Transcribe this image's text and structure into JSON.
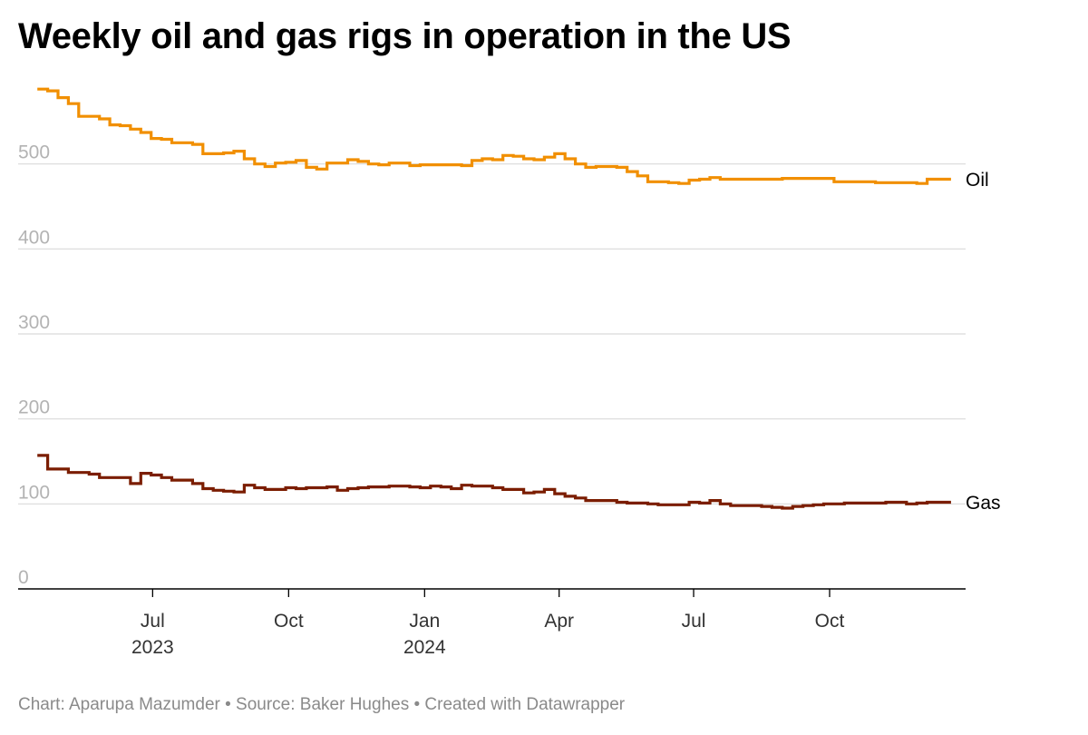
{
  "title": "Weekly oil and gas rigs in operation in the US",
  "footer": "Chart: Aparupa Mazumder • Source: Baker Hughes • Created with Datawrapper",
  "colors": {
    "oil": "#f18f00",
    "gas": "#7b1d00",
    "grid": "#d9d9d9",
    "axis": "#000000",
    "y_tick_text": "#b3b3b3",
    "x_tick_text": "#333333",
    "footer_text": "#8a8a8a"
  },
  "chart_data": {
    "type": "line",
    "title": "Weekly oil and gas rigs in operation in the US",
    "xlabel": "",
    "ylabel": "",
    "ylim": [
      0,
      600
    ],
    "xlim": [
      "2023-04-01",
      "2025-01-01"
    ],
    "grid": true,
    "line_style": "step",
    "y_ticks": [
      0,
      100,
      200,
      300,
      400,
      500
    ],
    "x_ticks": [
      {
        "date": "2023-07-01",
        "label": "Jul",
        "year": "2023"
      },
      {
        "date": "2023-10-01",
        "label": "Oct",
        "year": ""
      },
      {
        "date": "2024-01-01",
        "label": "Jan",
        "year": "2024"
      },
      {
        "date": "2024-04-01",
        "label": "Apr",
        "year": ""
      },
      {
        "date": "2024-07-01",
        "label": "Jul",
        "year": ""
      },
      {
        "date": "2024-10-01",
        "label": "Oct",
        "year": ""
      }
    ],
    "x": [
      "2023-04-14",
      "2023-04-21",
      "2023-04-28",
      "2023-05-05",
      "2023-05-12",
      "2023-05-19",
      "2023-05-26",
      "2023-06-02",
      "2023-06-09",
      "2023-06-16",
      "2023-06-23",
      "2023-06-30",
      "2023-07-07",
      "2023-07-14",
      "2023-07-21",
      "2023-07-28",
      "2023-08-04",
      "2023-08-11",
      "2023-08-18",
      "2023-08-25",
      "2023-09-01",
      "2023-09-08",
      "2023-09-15",
      "2023-09-22",
      "2023-09-29",
      "2023-10-06",
      "2023-10-13",
      "2023-10-20",
      "2023-10-27",
      "2023-11-03",
      "2023-11-10",
      "2023-11-17",
      "2023-11-24",
      "2023-12-01",
      "2023-12-08",
      "2023-12-15",
      "2023-12-22",
      "2023-12-29",
      "2024-01-05",
      "2024-01-12",
      "2024-01-19",
      "2024-01-26",
      "2024-02-02",
      "2024-02-09",
      "2024-02-16",
      "2024-02-23",
      "2024-03-01",
      "2024-03-08",
      "2024-03-15",
      "2024-03-22",
      "2024-03-29",
      "2024-04-05",
      "2024-04-12",
      "2024-04-19",
      "2024-04-26",
      "2024-05-03",
      "2024-05-10",
      "2024-05-17",
      "2024-05-24",
      "2024-05-31",
      "2024-06-07",
      "2024-06-14",
      "2024-06-21",
      "2024-06-28",
      "2024-07-05",
      "2024-07-12",
      "2024-07-19",
      "2024-07-26",
      "2024-08-02",
      "2024-08-09",
      "2024-08-16",
      "2024-08-23",
      "2024-08-30",
      "2024-09-06",
      "2024-09-13",
      "2024-09-20",
      "2024-09-27",
      "2024-10-04",
      "2024-10-11",
      "2024-10-18",
      "2024-10-25",
      "2024-11-01",
      "2024-11-08",
      "2024-11-15",
      "2024-11-22",
      "2024-11-29",
      "2024-12-06",
      "2024-12-13",
      "2024-12-20"
    ],
    "series": [
      {
        "name": "Oil",
        "values": [
          588,
          586,
          578,
          571,
          556,
          556,
          553,
          546,
          545,
          541,
          537,
          530,
          529,
          525,
          525,
          523,
          512,
          512,
          513,
          515,
          506,
          500,
          497,
          501,
          502,
          504,
          496,
          494,
          501,
          501,
          505,
          503,
          500,
          499,
          501,
          501,
          498,
          499,
          499,
          499,
          499,
          498,
          504,
          506,
          505,
          510,
          509,
          506,
          505,
          508,
          512,
          506,
          500,
          496,
          497,
          497,
          496,
          491,
          486,
          479,
          479,
          478,
          477,
          481,
          482,
          484,
          482,
          482,
          482,
          482,
          482,
          482,
          483,
          483,
          483,
          483,
          483,
          479,
          479,
          479,
          479,
          478,
          478,
          478,
          478,
          477,
          482,
          482,
          482
        ]
      },
      {
        "name": "Gas",
        "values": [
          157,
          141,
          141,
          137,
          137,
          135,
          131,
          131,
          131,
          124,
          136,
          134,
          131,
          128,
          128,
          124,
          118,
          116,
          115,
          114,
          122,
          119,
          117,
          117,
          119,
          118,
          119,
          119,
          120,
          116,
          118,
          119,
          120,
          120,
          121,
          121,
          120,
          119,
          121,
          120,
          118,
          122,
          121,
          121,
          119,
          117,
          117,
          113,
          114,
          117,
          112,
          109,
          107,
          104,
          104,
          104,
          102,
          101,
          101,
          100,
          99,
          99,
          99,
          102,
          101,
          104,
          100,
          98,
          98,
          98,
          97,
          96,
          95,
          97,
          98,
          99,
          100,
          100,
          101,
          101,
          101,
          101,
          102,
          102,
          100,
          101,
          102,
          102,
          102
        ]
      }
    ]
  }
}
